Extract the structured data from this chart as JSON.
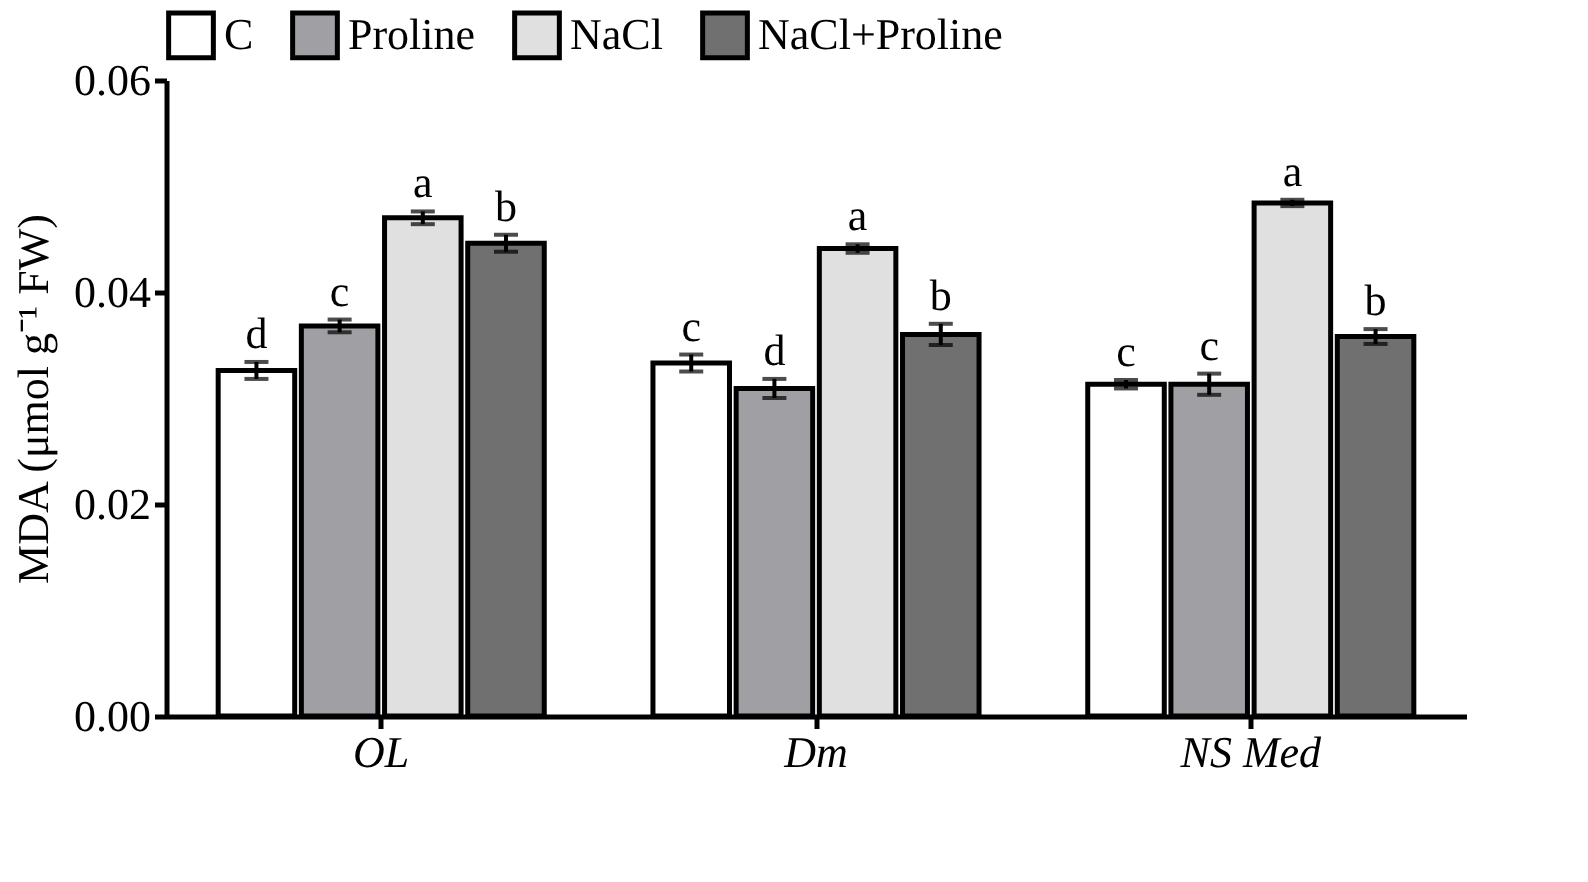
{
  "chart_data": {
    "type": "bar",
    "ylabel": "MDA (μmol g⁻¹ FW)",
    "categories": [
      "OL",
      "Dm",
      "NS Med"
    ],
    "series": [
      {
        "name": "C",
        "color": "#ffffff",
        "values": [
          0.0326,
          0.0333,
          0.0313
        ],
        "errors": [
          0.0008,
          0.0008,
          0.0004
        ],
        "value_labels": [
          "d",
          "c",
          "c"
        ]
      },
      {
        "name": "Proline",
        "color": "#a0a0a4",
        "values": [
          0.0368,
          0.0309,
          0.0313
        ],
        "errors": [
          0.0006,
          0.0009,
          0.001
        ],
        "value_labels": [
          "c",
          "d",
          "c"
        ]
      },
      {
        "name": "NaCl",
        "color": "#e0e0e0",
        "values": [
          0.047,
          0.0441,
          0.0484
        ],
        "errors": [
          0.0006,
          0.0004,
          0.0003
        ],
        "value_labels": [
          "a",
          "a",
          "a"
        ]
      },
      {
        "name": "NaCl+Proline",
        "color": "#707070",
        "values": [
          0.0446,
          0.036,
          0.0358
        ],
        "errors": [
          0.0008,
          0.001,
          0.0007
        ],
        "value_labels": [
          "b",
          "b",
          "b"
        ]
      }
    ],
    "ylim": [
      0,
      0.06
    ],
    "yticks": [
      {
        "value": 0,
        "label": "0.00"
      },
      {
        "value": 0.02,
        "label": "0.02"
      },
      {
        "value": 0.04,
        "label": "0.04"
      },
      {
        "value": 0.06,
        "label": "0.06"
      }
    ],
    "grid": false,
    "legend": "top"
  }
}
